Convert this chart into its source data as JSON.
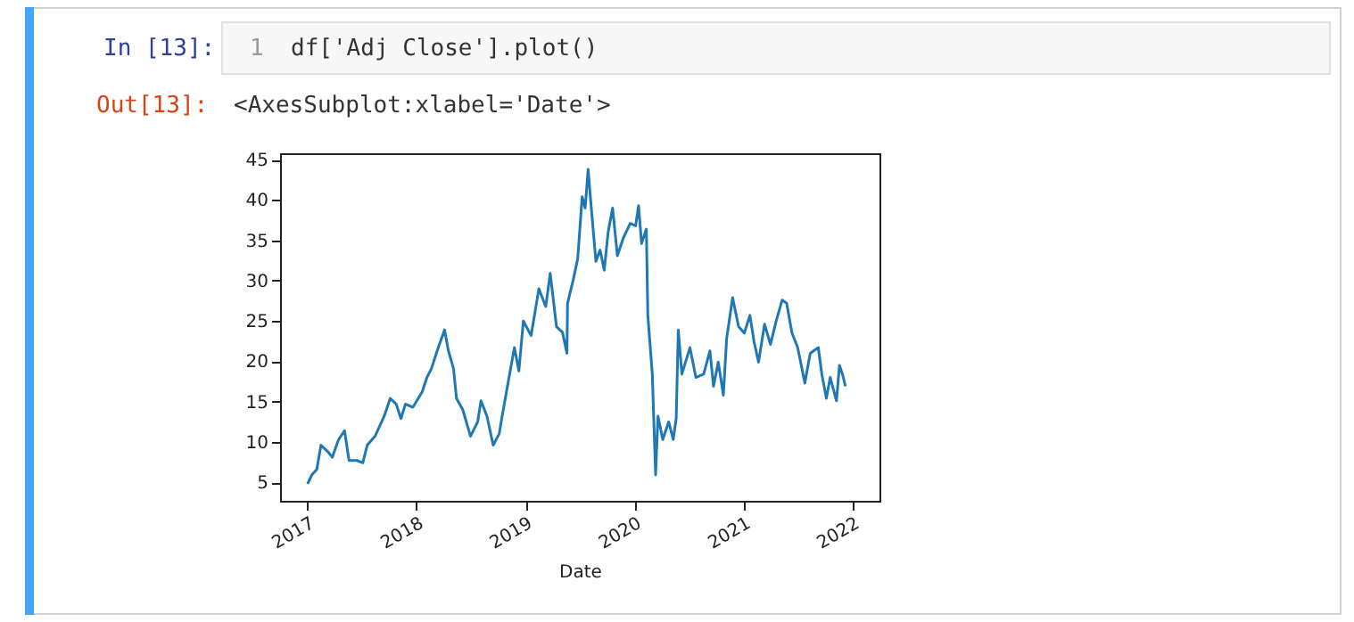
{
  "chart_data": {
    "type": "line",
    "xlabel": "Date",
    "annotations": [
      "In [13]:",
      "1",
      "df['Adj Close'].plot()",
      "Out[13]:",
      "<AxesSubplot:xlabel='Date'>"
    ],
    "x": [
      "2017-01-01",
      "2017-01-15",
      "2017-02-01",
      "2017-02-15",
      "2017-03-10",
      "2017-03-25",
      "2017-04-15",
      "2017-05-05",
      "2017-05-20",
      "2017-06-15",
      "2017-07-05",
      "2017-07-20",
      "2017-08-15",
      "2017-09-15",
      "2017-10-05",
      "2017-10-25",
      "2017-11-10",
      "2017-11-25",
      "2017-12-20",
      "2018-01-20",
      "2018-02-05",
      "2018-02-20",
      "2018-03-15",
      "2018-04-05",
      "2018-04-18",
      "2018-05-05",
      "2018-05-15",
      "2018-06-05",
      "2018-07-01",
      "2018-07-25",
      "2018-08-05",
      "2018-08-25",
      "2018-09-15",
      "2018-10-05",
      "2018-10-15",
      "2018-11-05",
      "2018-11-25",
      "2018-12-10",
      "2018-12-25",
      "2019-01-20",
      "2019-02-15",
      "2019-03-10",
      "2019-03-25",
      "2019-04-15",
      "2019-05-05",
      "2019-05-20",
      "2019-05-22",
      "2019-06-10",
      "2019-06-25",
      "2019-07-10",
      "2019-07-20",
      "2019-07-30",
      "2019-08-08",
      "2019-08-25",
      "2019-09-08",
      "2019-09-22",
      "2019-10-05",
      "2019-10-20",
      "2019-11-05",
      "2019-11-25",
      "2019-12-18",
      "2020-01-05",
      "2020-01-15",
      "2020-01-25",
      "2020-02-10",
      "2020-02-15",
      "2020-03-01",
      "2020-03-12",
      "2020-03-20",
      "2020-04-05",
      "2020-04-25",
      "2020-05-10",
      "2020-05-20",
      "2020-05-27",
      "2020-06-08",
      "2020-07-05",
      "2020-07-25",
      "2020-08-20",
      "2020-09-10",
      "2020-09-22",
      "2020-10-08",
      "2020-10-25",
      "2020-11-05",
      "2020-11-25",
      "2020-12-15",
      "2021-01-03",
      "2021-01-22",
      "2021-02-05",
      "2021-02-20",
      "2021-03-12",
      "2021-04-01",
      "2021-04-20",
      "2021-05-10",
      "2021-05-25",
      "2021-06-12",
      "2021-07-01",
      "2021-07-25",
      "2021-08-12",
      "2021-09-08",
      "2021-09-20",
      "2021-10-05",
      "2021-10-18",
      "2021-11-08",
      "2021-11-18",
      "2021-11-28",
      "2021-12-08"
    ],
    "series": [
      {
        "color": "#1f77b4",
        "values": [
          4.8,
          5.9,
          6.6,
          9.6,
          8.8,
          8.1,
          10.3,
          11.4,
          7.7,
          7.7,
          7.4,
          9.6,
          10.7,
          13.2,
          15.4,
          14.7,
          12.9,
          14.7,
          14.3,
          16.2,
          18.0,
          19.1,
          21.7,
          23.9,
          21.3,
          19.1,
          15.4,
          14.0,
          10.7,
          12.5,
          15.1,
          13.2,
          9.6,
          11.0,
          13.2,
          17.6,
          21.7,
          18.8,
          25.0,
          23.2,
          29.0,
          26.8,
          30.9,
          24.3,
          23.6,
          21.0,
          27.2,
          30.1,
          32.7,
          40.4,
          39.0,
          43.8,
          39.7,
          32.4,
          33.8,
          31.3,
          36.0,
          39.0,
          33.1,
          35.3,
          37.1,
          36.8,
          39.3,
          34.6,
          36.4,
          25.7,
          18.4,
          5.9,
          13.2,
          10.3,
          12.5,
          10.3,
          12.9,
          23.9,
          18.4,
          21.7,
          18.0,
          18.4,
          21.3,
          16.9,
          19.9,
          15.8,
          22.8,
          27.9,
          24.3,
          23.5,
          25.7,
          22.4,
          19.9,
          24.6,
          22.1,
          25.0,
          27.6,
          27.2,
          23.5,
          21.7,
          17.3,
          21.0,
          21.7,
          18.4,
          15.4,
          18.0,
          15.1,
          19.5,
          18.4,
          16.9
        ]
      }
    ],
    "xlim": [
      "2016-10-01",
      "2022-04-01"
    ],
    "xticks": [
      "2017",
      "2018",
      "2019",
      "2020",
      "2021",
      "2022"
    ],
    "ylim": [
      2.7,
      45.8
    ],
    "yticks": [
      5,
      10,
      15,
      20,
      25,
      30,
      35,
      40,
      45
    ],
    "grid": false,
    "legend": false,
    "marker": "none",
    "line_style": "solid"
  }
}
